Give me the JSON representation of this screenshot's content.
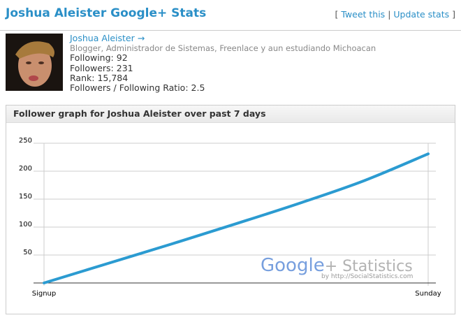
{
  "header": {
    "title": "Joshua Aleister Google+ Stats",
    "open": "[",
    "links": [
      "Tweet this",
      "Update stats"
    ],
    "separator": "|",
    "close": "]"
  },
  "profile": {
    "name": "Joshua Aleister →",
    "bio": "Blogger, Administrador de Sistemas, Freenlace y aun estudiando Michoacan",
    "stats": [
      {
        "label": "Following:",
        "value": "92"
      },
      {
        "label": "Followers:",
        "value": "231"
      },
      {
        "label": "Rank:",
        "value": "15,784"
      },
      {
        "label": "Followers / Following Ratio:",
        "value": "2.5"
      }
    ]
  },
  "chart_data": {
    "type": "line",
    "title": "Follower graph for Joshua Aleister over past 7 days",
    "categories": [
      "Signup",
      null,
      null,
      null,
      null,
      null,
      "Sunday"
    ],
    "series": [
      {
        "name": "Followers",
        "color": "#2b9bd1",
        "values": [
          0,
          35,
          70,
          106,
          143,
          183,
          231
        ]
      }
    ],
    "ylim": [
      0,
      250
    ],
    "yticks": [
      50,
      100,
      150,
      200,
      250
    ],
    "grid": true,
    "watermark": {
      "brand": "Google",
      "suffix": "+ Statistics",
      "byline": "by http://SocialStatistics.com"
    }
  }
}
